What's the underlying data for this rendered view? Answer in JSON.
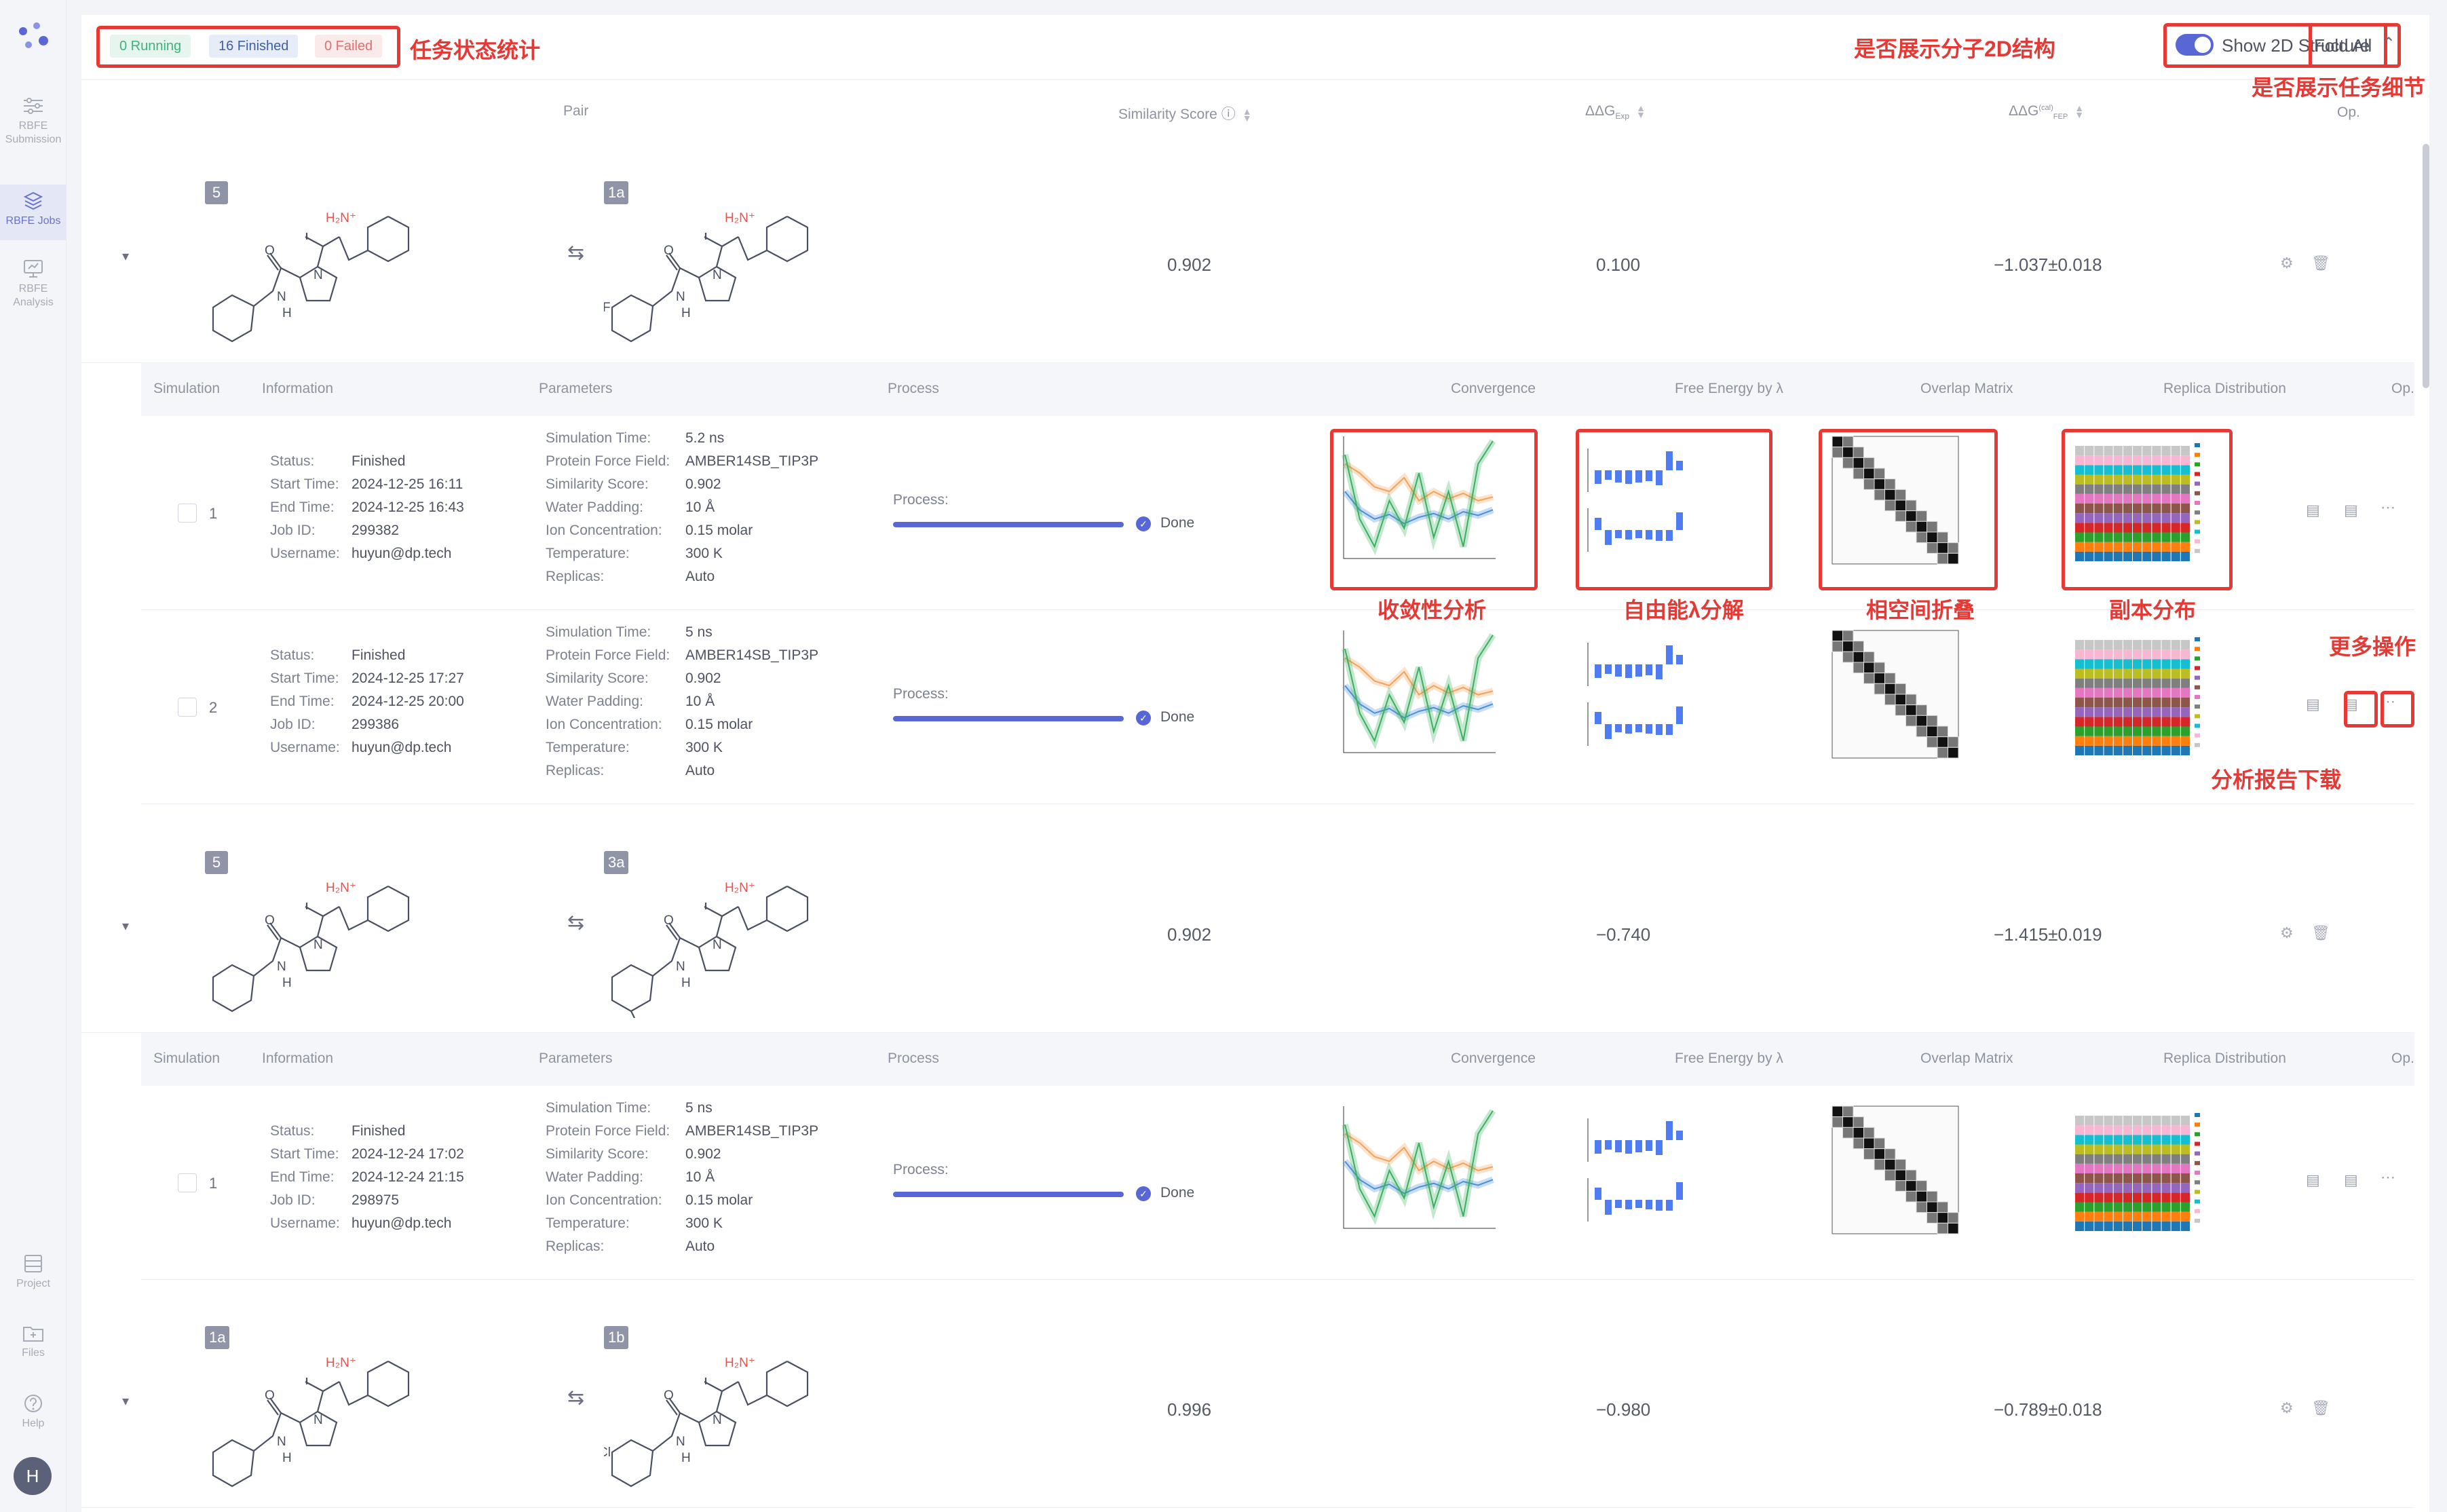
{
  "sidebar": {
    "items": [
      {
        "label": "RBFE Submission",
        "icon": "sliders-icon"
      },
      {
        "label": "RBFE Jobs",
        "icon": "stack-icon",
        "active": true
      },
      {
        "label": "RBFE Analysis",
        "icon": "monitor-icon"
      }
    ],
    "bottom": [
      {
        "label": "Project",
        "icon": "project-icon"
      },
      {
        "label": "Files",
        "icon": "folder-plus-icon"
      },
      {
        "label": "Help",
        "icon": "help-icon"
      }
    ],
    "avatar": "H"
  },
  "status": {
    "running": "0 Running",
    "finished": "16 Finished",
    "failed": "0 Failed"
  },
  "toolbar": {
    "show_2d": "Show 2D Structure",
    "fold_all": "Fold All"
  },
  "annotations": {
    "status": "任务状态统计",
    "show2d": "是否展示分子2D结构",
    "fold": "是否展示任务细节",
    "convergence": "收敛性分析",
    "free_energy": "自由能λ分解",
    "overlap": "相空间折叠",
    "replica": "副本分布",
    "more": "更多操作",
    "report": "分析报告下载"
  },
  "table_headers": {
    "pair": "Pair",
    "similarity": "Similarity Score",
    "ddg_exp": "ΔΔG",
    "ddg_exp_sub": "Exp",
    "ddg_fep": "ΔΔG",
    "ddg_fep_sup": "(cal)",
    "ddg_fep_sub": "FEP",
    "op": "Op."
  },
  "detail_headers": {
    "simulation": "Simulation",
    "information": "Information",
    "parameters": "Parameters",
    "process": "Process",
    "convergence": "Convergence",
    "free_energy": "Free Energy by λ",
    "overlap": "Overlap Matrix",
    "replica": "Replica Distribution",
    "op": "Op."
  },
  "info_labels": {
    "status": "Status:",
    "start": "Start Time:",
    "end": "End Time:",
    "job": "Job ID:",
    "user": "Username:"
  },
  "param_labels": {
    "sim_time": "Simulation Time:",
    "ff": "Protein Force Field:",
    "sim_score": "Similarity Score:",
    "water": "Water Padding:",
    "ion": "Ion Concentration:",
    "temp": "Temperature:",
    "replicas": "Replicas:"
  },
  "process_label": "Process:",
  "done_label": "Done",
  "pairs": [
    {
      "a": "5",
      "b": "1a",
      "similarity": "0.902",
      "ddg_exp": "0.100",
      "ddg_fep": "−1.037±0.018",
      "sims": [
        {
          "no": "1",
          "status": "Finished",
          "start": "2024-12-25 16:11",
          "end": "2024-12-25 16:43",
          "job": "299382",
          "user": "huyun@dp.tech",
          "sim_time": "5.2 ns",
          "ff": "AMBER14SB_TIP3P",
          "score": "0.902",
          "water": "10 Å",
          "ion": "0.15 molar",
          "temp": "300 K",
          "replicas": "Auto"
        },
        {
          "no": "2",
          "status": "Finished",
          "start": "2024-12-25 17:27",
          "end": "2024-12-25 20:00",
          "job": "299386",
          "user": "huyun@dp.tech",
          "sim_time": "5 ns",
          "ff": "AMBER14SB_TIP3P",
          "score": "0.902",
          "water": "10 Å",
          "ion": "0.15 molar",
          "temp": "300 K",
          "replicas": "Auto"
        }
      ]
    },
    {
      "a": "5",
      "b": "3a",
      "similarity": "0.902",
      "ddg_exp": "−0.740",
      "ddg_fep": "−1.415±0.019",
      "sims": [
        {
          "no": "1",
          "status": "Finished",
          "start": "2024-12-24 17:02",
          "end": "2024-12-24 21:15",
          "job": "298975",
          "user": "huyun@dp.tech",
          "sim_time": "5 ns",
          "ff": "AMBER14SB_TIP3P",
          "score": "0.902",
          "water": "10 Å",
          "ion": "0.15 molar",
          "temp": "300 K",
          "replicas": "Auto"
        }
      ]
    },
    {
      "a": "1a",
      "b": "1b",
      "similarity": "0.996",
      "ddg_exp": "−0.980",
      "ddg_fep": "−0.789±0.018",
      "sims": []
    }
  ],
  "mol": {
    "amine": "H₂N⁺",
    "n": "N",
    "nh": "N",
    "h": "H",
    "o": "O",
    "f": "F",
    "cl": "Cl"
  },
  "colors": {
    "accent": "#5966d6",
    "annotation": "#e53935",
    "running": "#3bb37a",
    "finished": "#3f5fa5",
    "failed": "#e07070"
  }
}
